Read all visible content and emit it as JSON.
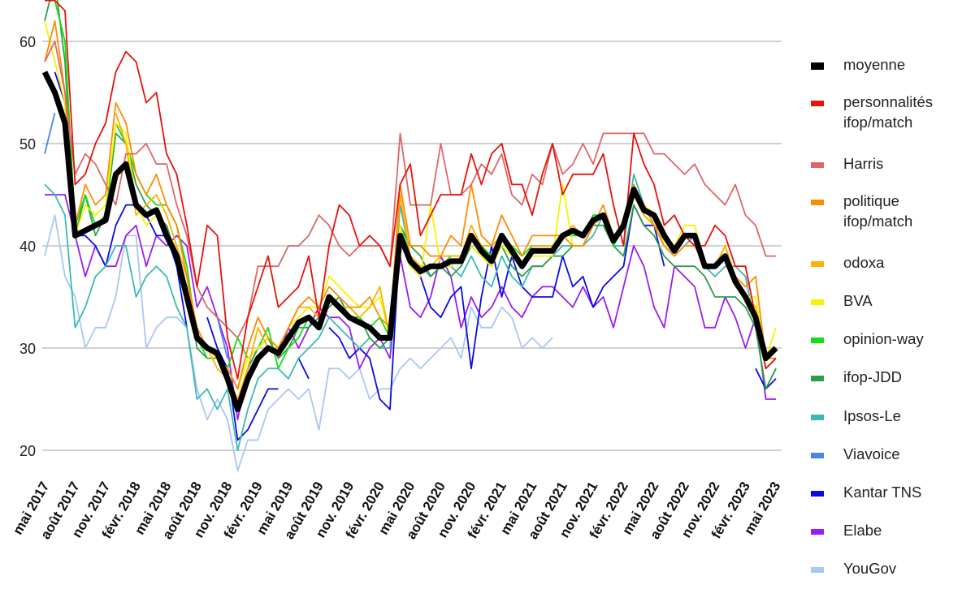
{
  "chart_data": {
    "type": "line",
    "title": "",
    "xlabel": "",
    "ylabel": "",
    "ylim": [
      17,
      64
    ],
    "yticks": [
      20,
      30,
      40,
      50,
      60
    ],
    "grid": true,
    "legend_position": "right",
    "x_start": "mai 2017",
    "x_end": "mai 2023",
    "x_step": "month",
    "xtick_labels": [
      "mai 2017",
      "août 2017",
      "nov. 2017",
      "févr. 2018",
      "mai 2018",
      "août 2018",
      "nov. 2018",
      "févr. 2019",
      "mai 2019",
      "août 2019",
      "nov. 2019",
      "févr. 2020",
      "mai 2020",
      "août 2020",
      "nov. 2020",
      "févr. 2021",
      "mai 2021",
      "août 2021",
      "nov. 2021",
      "févr. 2022",
      "mai 2022",
      "août 2022",
      "nov. 2022",
      "févr. 2023",
      "mai 2023"
    ],
    "series": [
      {
        "name": "moyenne",
        "color": "#000000",
        "values": [
          57,
          55,
          52,
          41,
          41.5,
          42,
          42.5,
          47,
          48,
          44,
          43,
          43.5,
          41,
          39,
          35,
          31,
          30,
          29.5,
          27,
          24,
          27,
          29,
          30,
          29.5,
          31,
          32.5,
          33,
          32,
          35,
          34,
          33,
          32.5,
          32,
          31,
          31,
          41,
          38.5,
          37.5,
          38,
          38,
          38.5,
          38.5,
          41,
          39.5,
          38.5,
          41,
          39.5,
          38,
          39.5,
          39.5,
          39.5,
          41,
          41.5,
          41,
          42.5,
          43,
          40.5,
          42,
          45.5,
          43.5,
          43,
          41,
          39.5,
          41,
          41,
          38,
          38,
          39,
          36.5,
          35,
          33,
          29,
          30
        ]
      },
      {
        "name": "personnalités ifop/match",
        "color": "#e8120c",
        "values": [
          64,
          64,
          63,
          46,
          47,
          50,
          52,
          57,
          59,
          58,
          54,
          55,
          49,
          47,
          42,
          36,
          42,
          41,
          31,
          27,
          33,
          36,
          39,
          34,
          35,
          36,
          39,
          33,
          40,
          44,
          43,
          40,
          41,
          40,
          38,
          46,
          48,
          41,
          43,
          45,
          45,
          45,
          49,
          46,
          49,
          50,
          46,
          46,
          43,
          47,
          50,
          45,
          47,
          47,
          47,
          49,
          44,
          40,
          51,
          48,
          46,
          42,
          43,
          41,
          40,
          40,
          42,
          41,
          38,
          38,
          33,
          28,
          29
        ]
      },
      {
        "name": "Harris",
        "color": "#e06666",
        "values": [
          58,
          60,
          55,
          47,
          49,
          48,
          46,
          44,
          49,
          49,
          50,
          48,
          48,
          44,
          41,
          36,
          34,
          33,
          32,
          31,
          33,
          38,
          38,
          38,
          40,
          40,
          41,
          43,
          42,
          40,
          39,
          40,
          40,
          40,
          38,
          51,
          44,
          44,
          44,
          50,
          45,
          45,
          46,
          48,
          47,
          49,
          45,
          44,
          47,
          46,
          50,
          47,
          48,
          50,
          48,
          51,
          51,
          51,
          51,
          51,
          49,
          49,
          48,
          47,
          48,
          46,
          45,
          44,
          46,
          43,
          42,
          39,
          39
        ]
      },
      {
        "name": "politique ifop/match",
        "color": "#ff8c00",
        "values": [
          58,
          62,
          55,
          42,
          46,
          44,
          45,
          54,
          52,
          47,
          45,
          47,
          44,
          42,
          37,
          32,
          30,
          29,
          28,
          26,
          30,
          33,
          31,
          30,
          32,
          34,
          35,
          34,
          36,
          35,
          34,
          34,
          35,
          33,
          32,
          46,
          40,
          40,
          39,
          39,
          41,
          40,
          46,
          41,
          40,
          43,
          41,
          39,
          41,
          41,
          41,
          41,
          40,
          40,
          42,
          44,
          41,
          42,
          46,
          44,
          42,
          40,
          39,
          40,
          40,
          38,
          38,
          39,
          37,
          36,
          37,
          29,
          29
        ]
      },
      {
        "name": "odoxa",
        "color": "#ffb000",
        "values": [
          null,
          null,
          null,
          null,
          null,
          null,
          null,
          53,
          50,
          43,
          44,
          45,
          43,
          40,
          37,
          31,
          30,
          28,
          27,
          25,
          28,
          32,
          30,
          30,
          32,
          34,
          34,
          33,
          35,
          34,
          34,
          33,
          34,
          36,
          31,
          45,
          39,
          38,
          38,
          39,
          39,
          39,
          42,
          40,
          40,
          41,
          40,
          38,
          40,
          40,
          40,
          41,
          42,
          41,
          42,
          43,
          41,
          42,
          45,
          43,
          42,
          41,
          40,
          41,
          41,
          38,
          38,
          40,
          37,
          35,
          34,
          29,
          30
        ]
      },
      {
        "name": "BVA",
        "color": "#f7f200",
        "values": [
          62,
          58,
          54,
          41,
          44,
          43,
          44,
          52,
          51,
          44,
          42,
          43,
          41,
          40,
          35,
          31,
          30,
          29,
          28,
          26,
          29,
          30,
          31,
          30,
          32,
          33,
          34,
          34,
          37,
          36,
          35,
          34,
          34,
          35,
          31,
          42,
          38,
          37,
          44,
          38,
          38,
          39,
          40,
          39,
          38,
          40,
          39,
          38,
          39,
          39,
          39,
          46,
          40,
          40,
          42,
          43,
          41,
          42,
          46,
          44,
          43,
          40,
          40,
          42,
          42,
          38,
          38,
          40,
          36,
          35,
          35,
          29,
          32
        ]
      },
      {
        "name": "opinion-way",
        "color": "#12e012",
        "values": [
          null,
          64,
          60,
          42,
          45,
          42,
          43,
          52,
          50,
          47,
          45,
          44,
          44,
          42,
          38,
          31,
          29,
          29,
          28,
          31,
          29,
          30,
          32,
          28,
          30,
          31,
          33,
          32,
          35,
          34,
          34,
          33,
          32,
          33,
          31,
          42,
          39,
          38,
          38,
          38,
          39,
          39,
          41,
          40,
          39,
          41,
          40,
          39,
          40,
          40,
          40,
          41,
          41,
          41,
          43,
          43,
          40,
          42,
          46,
          43,
          42,
          41,
          40,
          41,
          41,
          38,
          38,
          39,
          37,
          35,
          33,
          28,
          29
        ]
      },
      {
        "name": "ifop-JDD",
        "color": "#2f9e48",
        "values": [
          62,
          66,
          58,
          41,
          45,
          41,
          43,
          51,
          50,
          46,
          44,
          43,
          42,
          39,
          36,
          30,
          29,
          29,
          27,
          24,
          28,
          30,
          31,
          29,
          30,
          32,
          32,
          33,
          34,
          35,
          33,
          33,
          31,
          30,
          31,
          42,
          40,
          39,
          37,
          38,
          37,
          38,
          40,
          39,
          38,
          40,
          38,
          37,
          38,
          38,
          39,
          39,
          40,
          40,
          42,
          42,
          40,
          39,
          44,
          42,
          41,
          39,
          38,
          38,
          38,
          37,
          35,
          35,
          35,
          34,
          32,
          26,
          28
        ]
      },
      {
        "name": "Ipsos-Le",
        "color": "#3cb9b4",
        "values": [
          46,
          45,
          43,
          32,
          34,
          37,
          38,
          40,
          40,
          35,
          37,
          38,
          37,
          34,
          32,
          25,
          26,
          24,
          26,
          20,
          24,
          27,
          28,
          28,
          27,
          29,
          30,
          31,
          33,
          32,
          31,
          30,
          31,
          30,
          30,
          44,
          39,
          38,
          37,
          38,
          38,
          37,
          39,
          37,
          36,
          39,
          37,
          36,
          38,
          38,
          39,
          40,
          40,
          40,
          41,
          43,
          40,
          40,
          47,
          44,
          42,
          40,
          39,
          40,
          41,
          38,
          37,
          38,
          38,
          37,
          32,
          26,
          28
        ]
      },
      {
        "name": "Viavoice",
        "color": "#4a86e8",
        "values": [
          49,
          53,
          null,
          null,
          null,
          null,
          null,
          null,
          null,
          null,
          null,
          null,
          null,
          null,
          null,
          null,
          null,
          33,
          29,
          null,
          null,
          null,
          null,
          null,
          null,
          null,
          null,
          null,
          null,
          null,
          null,
          null,
          null,
          null,
          null,
          null,
          null,
          null,
          null,
          null,
          null,
          null,
          null,
          null,
          null,
          null,
          null,
          null,
          null,
          null,
          null,
          null,
          null,
          null,
          null,
          null,
          null,
          null,
          null,
          null,
          null,
          null,
          null,
          null,
          null,
          null,
          null,
          null,
          null,
          null,
          null,
          null,
          null
        ]
      },
      {
        "name": "Kantar TNS",
        "color": "#0a0ae8",
        "values": [
          null,
          57,
          54,
          41,
          41,
          40,
          38,
          42,
          44,
          44,
          43,
          41,
          41,
          38,
          32,
          null,
          33,
          30,
          28,
          21,
          22,
          24,
          26,
          26,
          null,
          29,
          27,
          null,
          32,
          31,
          29,
          30,
          29,
          25,
          24,
          41,
          38,
          37,
          34,
          33,
          35,
          36,
          28,
          35,
          40,
          35,
          39,
          36,
          35,
          35,
          35,
          39,
          36,
          37,
          34,
          36,
          37,
          38,
          44,
          42,
          42,
          38,
          null,
          null,
          null,
          null,
          null,
          null,
          null,
          null,
          28,
          26,
          27
        ]
      },
      {
        "name": "Elabe",
        "color": "#9b1cf0",
        "values": [
          45,
          45,
          45,
          41,
          37,
          40,
          38,
          38,
          41,
          42,
          38,
          41,
          40,
          41,
          40,
          34,
          36,
          33,
          30,
          23,
          28,
          30,
          31,
          29,
          32,
          30,
          32,
          34,
          33,
          33,
          32,
          28,
          30,
          31,
          29,
          39,
          34,
          33,
          35,
          39,
          37,
          32,
          35,
          33,
          34,
          36,
          34,
          33,
          35,
          36,
          36,
          35,
          34,
          36,
          34,
          35,
          32,
          36,
          40,
          38,
          34,
          32,
          38,
          37,
          36,
          32,
          32,
          35,
          33,
          30,
          33,
          25,
          25
        ]
      },
      {
        "name": "YouGov",
        "color": "#a9c7f5",
        "values": [
          39,
          43,
          37,
          35,
          30,
          32,
          32,
          35,
          41,
          41,
          30,
          32,
          33,
          33,
          32,
          26,
          23,
          25,
          23,
          18,
          21,
          21,
          24,
          25,
          26,
          25,
          26,
          22,
          28,
          28,
          27,
          28,
          25,
          26,
          26,
          28,
          29,
          28,
          29,
          30,
          31,
          29,
          34,
          32,
          32,
          34,
          33,
          30,
          31,
          30,
          31,
          null,
          null,
          null,
          null,
          null,
          null,
          null,
          null,
          null,
          null,
          null,
          null,
          null,
          null,
          null,
          null,
          null,
          null,
          null,
          null,
          null,
          null
        ]
      }
    ]
  },
  "legend": [
    {
      "label": "moyenne"
    },
    {
      "label": "personnalités ifop/match"
    },
    {
      "label": "Harris"
    },
    {
      "label": "politique ifop/match"
    },
    {
      "label": "odoxa"
    },
    {
      "label": "BVA"
    },
    {
      "label": "opinion-way"
    },
    {
      "label": "ifop-JDD"
    },
    {
      "label": "Ipsos-Le"
    },
    {
      "label": "Viavoice"
    },
    {
      "label": "Kantar TNS"
    },
    {
      "label": "Elabe"
    },
    {
      "label": "YouGov"
    }
  ]
}
